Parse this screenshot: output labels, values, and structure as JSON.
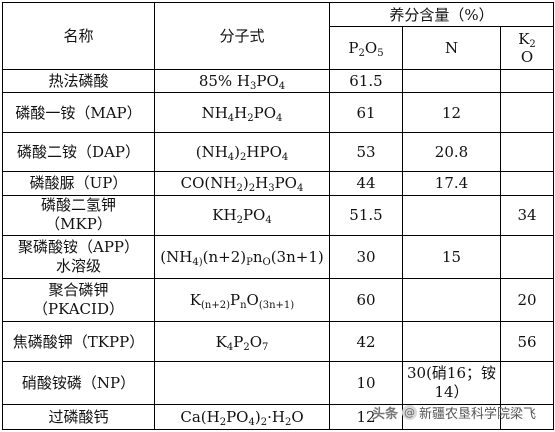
{
  "header": {
    "name": "名称",
    "formula": "分子式",
    "nutrient": "养分含量（%）",
    "p2o5": {
      "a": "P",
      "b": "2",
      "c": "O",
      "d": "5"
    },
    "n": "N",
    "k2o": {
      "a": "K",
      "b": "2",
      "c": "O"
    }
  },
  "rows": [
    {
      "name": "热法磷酸",
      "formula": [
        "85% H",
        "3",
        "PO",
        "4"
      ],
      "p2o5": "61.5",
      "n": "",
      "k2o": ""
    },
    {
      "name": "磷酸一铵（MAP）",
      "formula": [
        "NH",
        "4",
        "H",
        "2",
        "PO",
        "4"
      ],
      "p2o5": "61",
      "n": "12",
      "k2o": ""
    },
    {
      "name": "磷酸二铵（DAP）",
      "formula": [
        "(NH",
        "4",
        ")",
        "2",
        "HPO",
        "4"
      ],
      "p2o5": "53",
      "n": "20.8",
      "k2o": ""
    },
    {
      "name": "磷酸脲（UP）",
      "formula": [
        "CO(NH",
        "2",
        ")",
        "2",
        "H",
        "3",
        "PO",
        "4"
      ],
      "p2o5": "44",
      "n": "17.4",
      "k2o": ""
    },
    {
      "name": "磷酸二氢钾",
      "name2": "（MKP）",
      "formula": [
        "KH",
        "2",
        "PO",
        "4"
      ],
      "p2o5": "51.5",
      "n": "",
      "k2o": "34"
    },
    {
      "name": "聚磷酸铵（APP）",
      "name2": "水溶级",
      "formula": [
        "(NH",
        "4",
        ")",
        "(n+2)",
        "P",
        "n",
        "O",
        "(3n+1)"
      ],
      "p2o5": "30",
      "n": "15",
      "k2o": ""
    },
    {
      "name": "聚合磷钾",
      "name2": "（PKACID）",
      "formula": [
        "K",
        "(n+2)",
        "P",
        "n",
        "O",
        "(3n+1)"
      ],
      "p2o5": "60",
      "n": "",
      "k2o": "20"
    },
    {
      "name": "焦磷酸钾（TKPP）",
      "formula": [
        "K",
        "4",
        "P",
        "2",
        "O",
        "7"
      ],
      "p2o5": "42",
      "n": "",
      "k2o": "56"
    },
    {
      "name": "硝酸铵磷（NP）",
      "formula": [],
      "p2o5": "10",
      "n": "30(硝16；铵",
      "n2": "14）",
      "k2o": ""
    },
    {
      "name": "过磷酸钙",
      "formula": [
        "Ca(H",
        "2",
        "PO",
        "4",
        ")",
        "2",
        "·H",
        "2",
        "O"
      ],
      "p2o5": "12",
      "n": "",
      "k2o": ""
    }
  ],
  "watermark": {
    "brand": "头条",
    "at": "@",
    "account": "新疆农垦科学院梁飞"
  }
}
